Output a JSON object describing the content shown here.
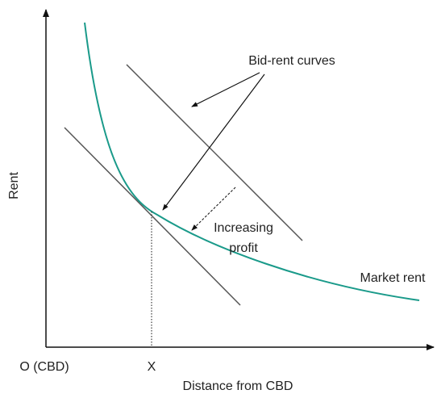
{
  "axes": {
    "y_label": "Rent",
    "x_label": "Distance from CBD",
    "origin_label": "O (CBD)",
    "x_point_label": "X"
  },
  "annotations": {
    "bid_rent": "Bid-rent curves",
    "increasing": "Increasing",
    "profit": "profit",
    "market_rent": "Market rent"
  }
}
